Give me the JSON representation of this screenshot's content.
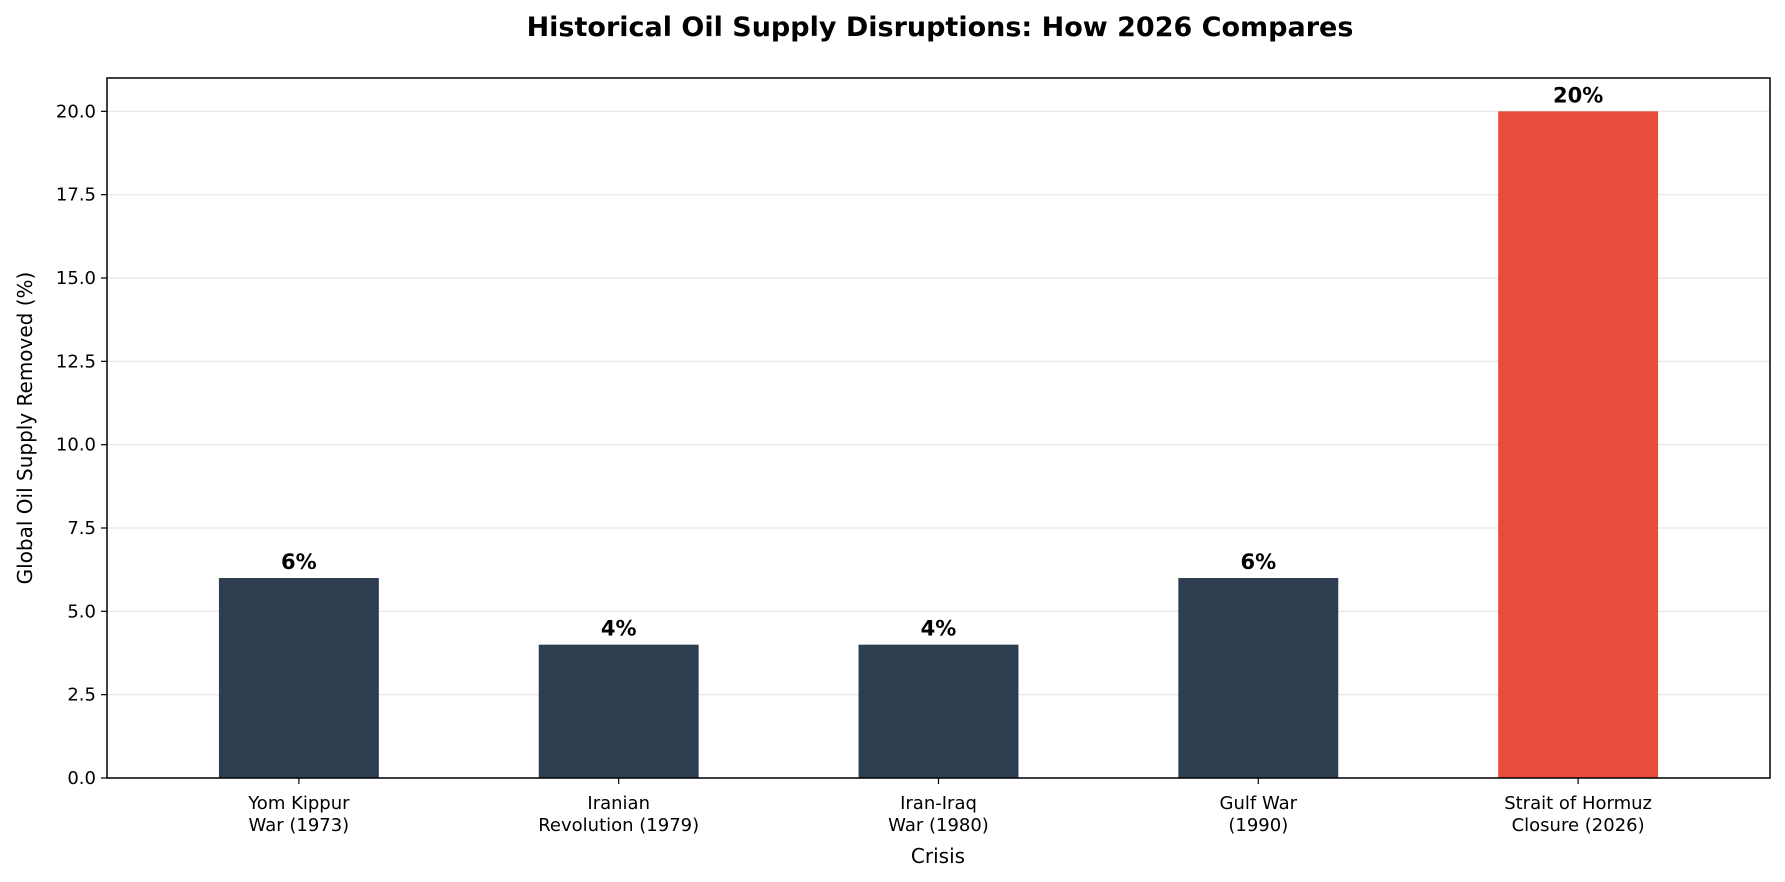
{
  "chart_data": {
    "type": "bar",
    "title": "Historical Oil Supply Disruptions: How 2026 Compares",
    "xlabel": "Crisis",
    "ylabel": "Global Oil Supply Removed (%)",
    "ylim": [
      0,
      21
    ],
    "yticks": [
      "0.0",
      "2.5",
      "5.0",
      "7.5",
      "10.0",
      "12.5",
      "15.0",
      "17.5",
      "20.0"
    ],
    "grid": "y-axis",
    "categories": [
      [
        "Yom Kippur",
        "War (1973)"
      ],
      [
        "Iranian",
        "Revolution (1979)"
      ],
      [
        "Iran-Iraq",
        "War (1980)"
      ],
      [
        "Gulf War",
        "(1990)"
      ],
      [
        "Strait of Hormuz",
        "Closure (2026)"
      ]
    ],
    "values": [
      6,
      4,
      4,
      6,
      20
    ],
    "data_labels": [
      "6%",
      "4%",
      "4%",
      "6%",
      "20%"
    ],
    "colors": [
      "#2c3e50",
      "#2c3e50",
      "#2c3e50",
      "#2c3e50",
      "#e74c3c"
    ]
  }
}
